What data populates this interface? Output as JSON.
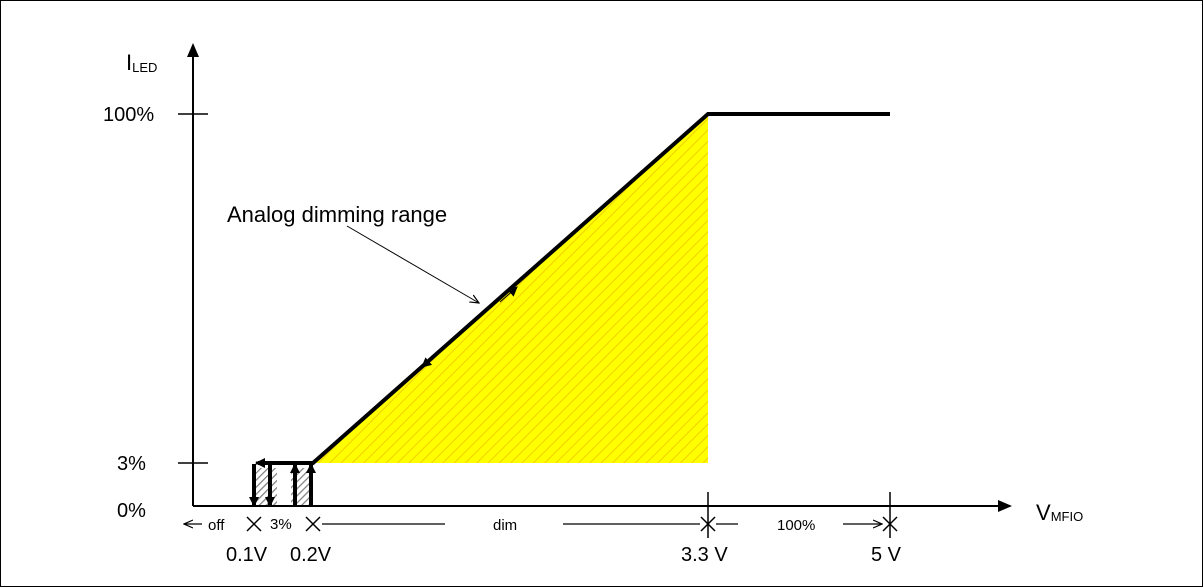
{
  "axes": {
    "y_label_main": "I",
    "y_label_sub": "LED",
    "x_label_main": "V",
    "x_label_sub": "MFIO"
  },
  "y_ticks": {
    "top": "100%",
    "low": "3%",
    "zero": "0%"
  },
  "x_ticks": {
    "v01": "0.1V",
    "v02": "0.2V",
    "v33": "3.3 V",
    "v5": "5 V"
  },
  "regions": {
    "off": "off",
    "pct3": "3%",
    "dim": "dim",
    "full": "100%"
  },
  "annotation": "Analog dimming range",
  "colors": {
    "fill": "#ffff00",
    "hatch": "#e8c200",
    "line": "#000000",
    "gray_hatch": "#808080"
  }
}
